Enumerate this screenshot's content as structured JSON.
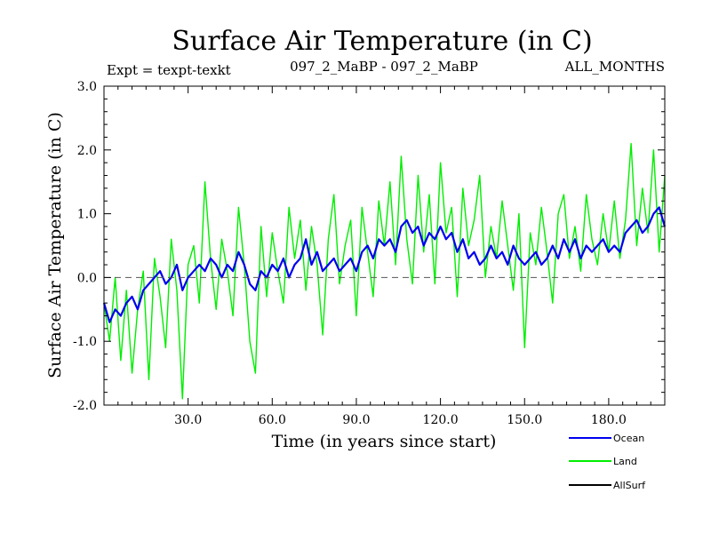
{
  "chart_data": {
    "type": "line",
    "title": "Surface Air Temperature (in C)",
    "subtitle_left": "Expt = texpt-texkt",
    "subtitle_center": "097_2_MaBP - 097_2_MaBP",
    "subtitle_right": "ALL_MONTHS",
    "xlabel": "Time (in years since start)",
    "ylabel": "Surface Air Temperature (in C)",
    "xlim": [
      0,
      200
    ],
    "ylim": [
      -2.0,
      3.0
    ],
    "x_ticks": [
      {
        "value": 30,
        "label": "30.0"
      },
      {
        "value": 60,
        "label": "60.0"
      },
      {
        "value": 90,
        "label": "90.0"
      },
      {
        "value": 120,
        "label": "120.0"
      },
      {
        "value": 150,
        "label": "150.0"
      },
      {
        "value": 180,
        "label": "180.0"
      }
    ],
    "y_ticks": [
      {
        "value": -2.0,
        "label": "-2.0"
      },
      {
        "value": -1.0,
        "label": "-1.0"
      },
      {
        "value": 0.0,
        "label": "0.0"
      },
      {
        "value": 1.0,
        "label": "1.0"
      },
      {
        "value": 2.0,
        "label": "2.0"
      },
      {
        "value": 3.0,
        "label": "3.0"
      }
    ],
    "zero_line": 0.0,
    "series": [
      {
        "name": "Land",
        "color": "#00ee00",
        "x": [
          0,
          2,
          4,
          6,
          8,
          10,
          12,
          14,
          16,
          18,
          20,
          22,
          24,
          26,
          28,
          30,
          32,
          34,
          36,
          38,
          40,
          42,
          44,
          46,
          48,
          50,
          52,
          54,
          56,
          58,
          60,
          62,
          64,
          66,
          68,
          70,
          72,
          74,
          76,
          78,
          80,
          82,
          84,
          86,
          88,
          90,
          92,
          94,
          96,
          98,
          100,
          102,
          104,
          106,
          108,
          110,
          112,
          114,
          116,
          118,
          120,
          122,
          124,
          126,
          128,
          130,
          132,
          134,
          136,
          138,
          140,
          142,
          144,
          146,
          148,
          150,
          152,
          154,
          156,
          158,
          160,
          162,
          164,
          166,
          168,
          170,
          172,
          174,
          176,
          178,
          180,
          182,
          184,
          186,
          188,
          190,
          192,
          194,
          196,
          198,
          200
        ],
        "values": [
          -0.4,
          -1.0,
          0.0,
          -1.3,
          -0.2,
          -1.5,
          -0.5,
          0.1,
          -1.6,
          0.3,
          -0.3,
          -1.1,
          0.6,
          -0.2,
          -1.9,
          0.2,
          0.5,
          -0.4,
          1.5,
          0.3,
          -0.5,
          0.6,
          0.1,
          -0.6,
          1.1,
          0.2,
          -1.0,
          -1.5,
          0.8,
          -0.3,
          0.7,
          0.1,
          -0.4,
          1.1,
          0.3,
          0.9,
          -0.2,
          0.8,
          0.2,
          -0.9,
          0.6,
          1.3,
          -0.1,
          0.5,
          0.9,
          -0.6,
          1.1,
          0.4,
          -0.3,
          1.2,
          0.5,
          1.5,
          0.2,
          1.9,
          0.6,
          -0.1,
          1.6,
          0.4,
          1.3,
          -0.1,
          1.8,
          0.7,
          1.1,
          -0.3,
          1.4,
          0.5,
          0.9,
          1.6,
          0.0,
          0.8,
          0.3,
          1.2,
          0.5,
          -0.2,
          1.0,
          -1.1,
          0.7,
          0.2,
          1.1,
          0.4,
          -0.4,
          1.0,
          1.3,
          0.3,
          0.8,
          0.1,
          1.3,
          0.6,
          0.2,
          1.0,
          0.4,
          1.2,
          0.3,
          0.9,
          2.1,
          0.5,
          1.4,
          0.7,
          2.0,
          0.4,
          1.6
        ]
      },
      {
        "name": "Ocean",
        "color": "#0000ee",
        "x": [
          0,
          2,
          4,
          6,
          8,
          10,
          12,
          14,
          16,
          18,
          20,
          22,
          24,
          26,
          28,
          30,
          32,
          34,
          36,
          38,
          40,
          42,
          44,
          46,
          48,
          50,
          52,
          54,
          56,
          58,
          60,
          62,
          64,
          66,
          68,
          70,
          72,
          74,
          76,
          78,
          80,
          82,
          84,
          86,
          88,
          90,
          92,
          94,
          96,
          98,
          100,
          102,
          104,
          106,
          108,
          110,
          112,
          114,
          116,
          118,
          120,
          122,
          124,
          126,
          128,
          130,
          132,
          134,
          136,
          138,
          140,
          142,
          144,
          146,
          148,
          150,
          152,
          154,
          156,
          158,
          160,
          162,
          164,
          166,
          168,
          170,
          172,
          174,
          176,
          178,
          180,
          182,
          184,
          186,
          188,
          190,
          192,
          194,
          196,
          198,
          200
        ],
        "values": [
          -0.4,
          -0.7,
          -0.5,
          -0.6,
          -0.4,
          -0.3,
          -0.5,
          -0.2,
          -0.1,
          0.0,
          0.1,
          -0.1,
          0.0,
          0.2,
          -0.2,
          0.0,
          0.1,
          0.2,
          0.1,
          0.3,
          0.2,
          0.0,
          0.2,
          0.1,
          0.4,
          0.2,
          -0.1,
          -0.2,
          0.1,
          0.0,
          0.2,
          0.1,
          0.3,
          0.0,
          0.2,
          0.3,
          0.6,
          0.2,
          0.4,
          0.1,
          0.2,
          0.3,
          0.1,
          0.2,
          0.3,
          0.1,
          0.4,
          0.5,
          0.3,
          0.6,
          0.5,
          0.6,
          0.4,
          0.8,
          0.9,
          0.7,
          0.8,
          0.5,
          0.7,
          0.6,
          0.8,
          0.6,
          0.7,
          0.4,
          0.6,
          0.3,
          0.4,
          0.2,
          0.3,
          0.5,
          0.3,
          0.4,
          0.2,
          0.5,
          0.3,
          0.2,
          0.3,
          0.4,
          0.2,
          0.3,
          0.5,
          0.3,
          0.6,
          0.4,
          0.6,
          0.3,
          0.5,
          0.4,
          0.5,
          0.6,
          0.4,
          0.5,
          0.4,
          0.7,
          0.8,
          0.9,
          0.7,
          0.8,
          1.0,
          1.1,
          0.8
        ]
      }
    ],
    "legend": [
      {
        "name": "Ocean",
        "color": "#0000ee"
      },
      {
        "name": "Land",
        "color": "#00ee00"
      },
      {
        "name": "AllSurf",
        "color": "#000000"
      }
    ]
  }
}
